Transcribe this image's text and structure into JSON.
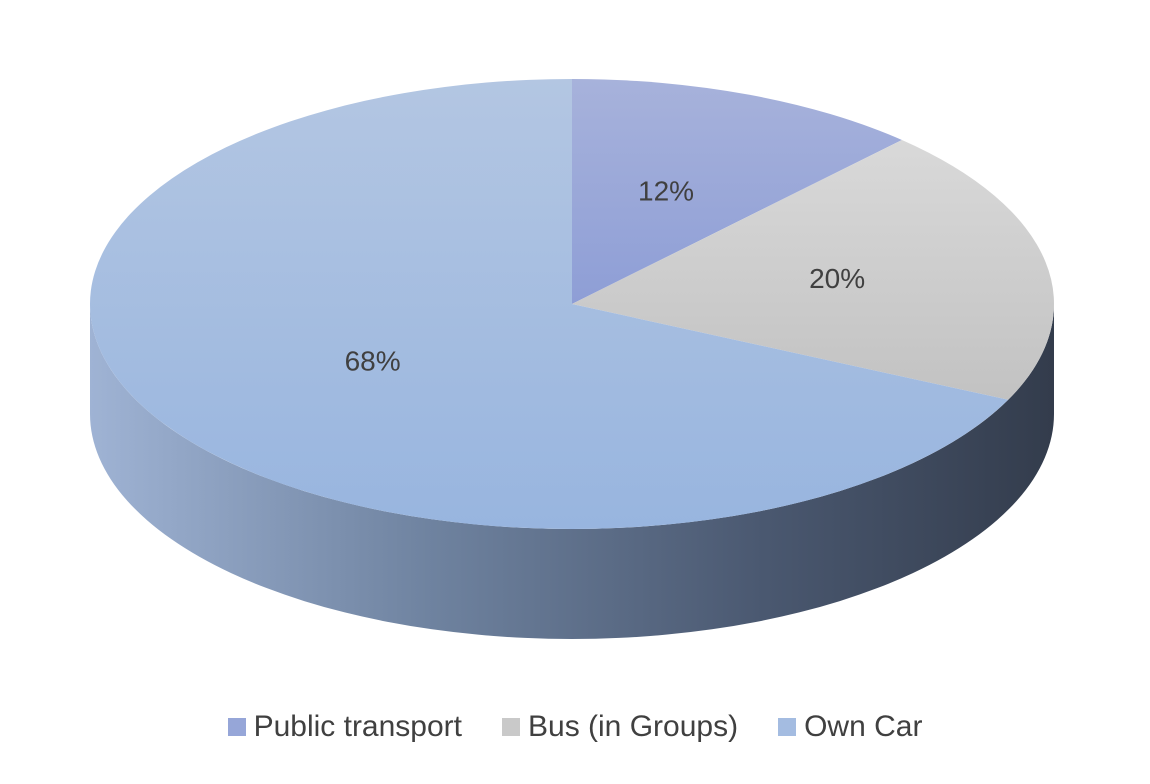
{
  "chart_data": {
    "type": "pie",
    "style": "3d",
    "categories": [
      "Public transport",
      "Bus (in Groups)",
      "Own Car"
    ],
    "values": [
      12,
      20,
      68
    ],
    "data_labels": [
      "12%",
      "20%",
      "68%"
    ],
    "colors": [
      "#96a6d8",
      "#c9c9c9",
      "#a4bce1"
    ],
    "title": "",
    "legend_position": "bottom"
  }
}
